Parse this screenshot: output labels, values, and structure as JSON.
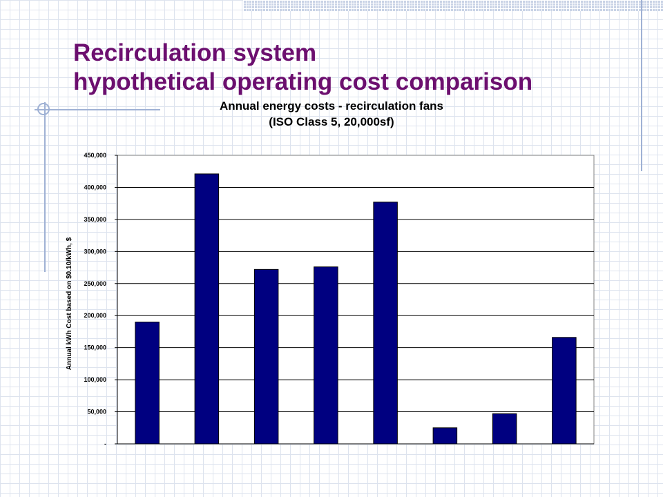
{
  "slide": {
    "title_line1": "Recirculation system",
    "title_line2": "hypothetical operating cost comparison",
    "title_color": "#6C0F6F"
  },
  "chart_data": {
    "type": "bar",
    "title": "Annual energy costs - recirculation fans",
    "subtitle": "(ISO Class 5, 20,000sf)",
    "xlabel": "",
    "ylabel": "Annual kWh Cost based on $0.10/kWh, $",
    "ylim": [
      0,
      450000
    ],
    "yticks": [
      0,
      50000,
      100000,
      150000,
      200000,
      250000,
      300000,
      350000,
      400000,
      450000
    ],
    "ytick_labels": [
      "-",
      "50,000",
      "100,000",
      "150,000",
      "200,000",
      "250,000",
      "300,000",
      "350,000",
      "400,000",
      "450,000"
    ],
    "categories": [
      "",
      "",
      "",
      "",
      "",
      "",
      "",
      ""
    ],
    "values": [
      190000,
      421000,
      272000,
      276000,
      377000,
      25000,
      47000,
      166000
    ],
    "bar_color": "#000080",
    "grid": true,
    "legend": "none"
  }
}
